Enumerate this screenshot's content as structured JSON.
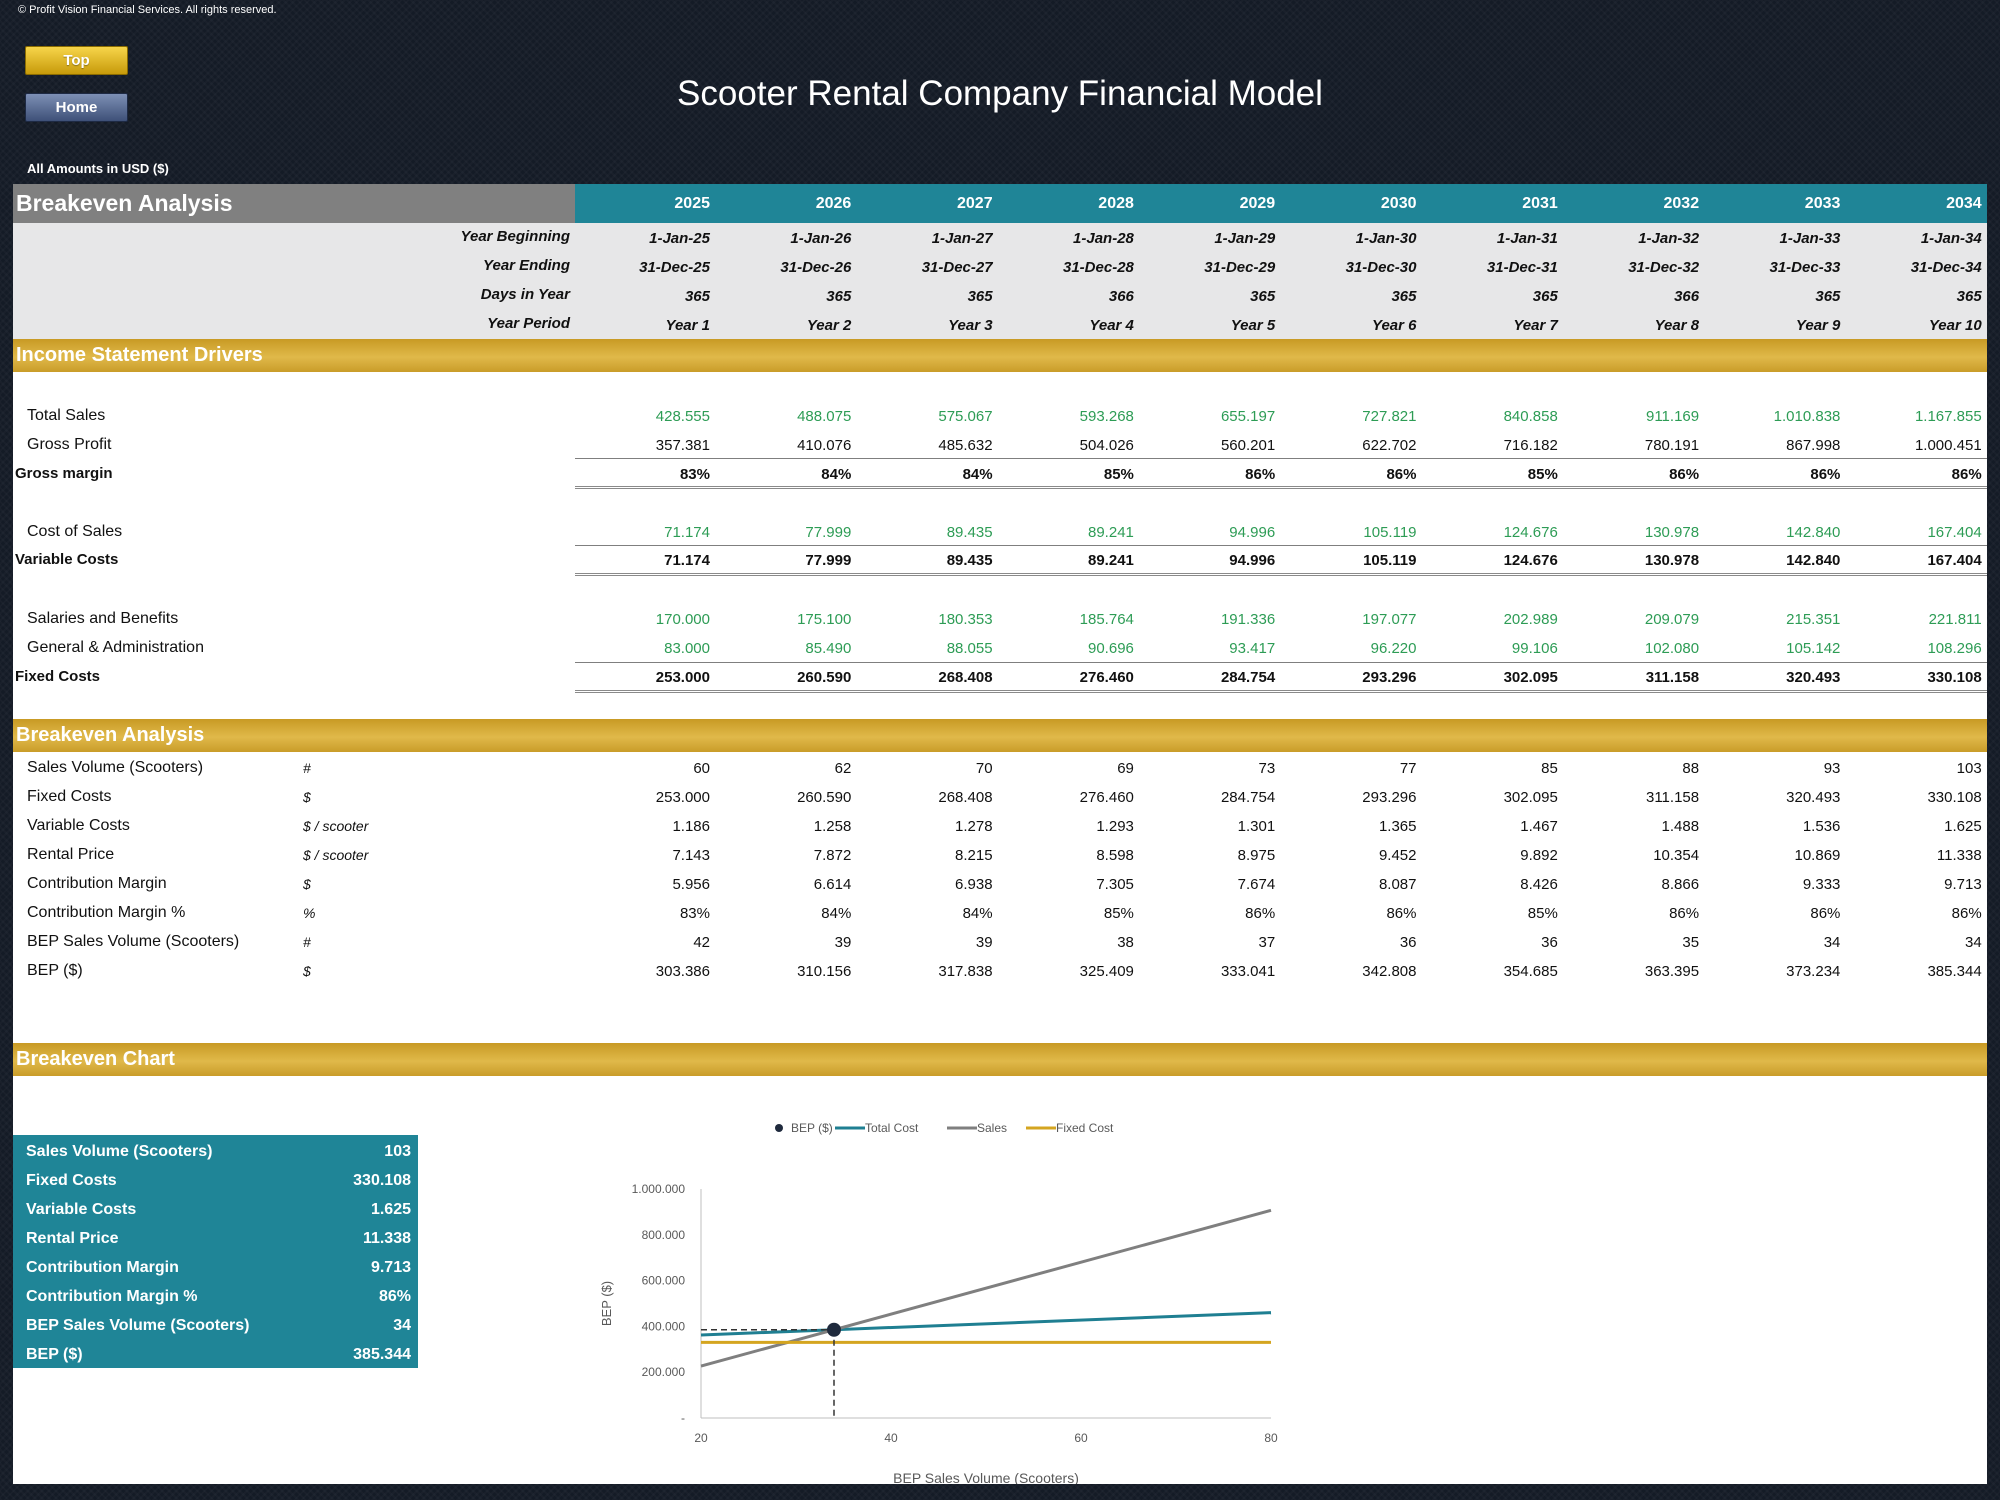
{
  "copyright": "© Profit Vision Financial Services. All rights reserved.",
  "buttons": {
    "top": "Top",
    "home": "Home"
  },
  "title": "Scooter Rental Company Financial Model",
  "amounts_note": "All Amounts in  USD ($)",
  "header": {
    "section": "Breakeven Analysis",
    "years": [
      "2025",
      "2026",
      "2027",
      "2028",
      "2029",
      "2030",
      "2031",
      "2032",
      "2033",
      "2034"
    ]
  },
  "timeline": {
    "labels": [
      "Year Beginning",
      "Year Ending",
      "Days in Year",
      "Year Period"
    ],
    "year_beginning": [
      "1-Jan-25",
      "1-Jan-26",
      "1-Jan-27",
      "1-Jan-28",
      "1-Jan-29",
      "1-Jan-30",
      "1-Jan-31",
      "1-Jan-32",
      "1-Jan-33",
      "1-Jan-34"
    ],
    "year_ending": [
      "31-Dec-25",
      "31-Dec-26",
      "31-Dec-27",
      "31-Dec-28",
      "31-Dec-29",
      "31-Dec-30",
      "31-Dec-31",
      "31-Dec-32",
      "31-Dec-33",
      "31-Dec-34"
    ],
    "days_in_year": [
      "365",
      "365",
      "365",
      "366",
      "365",
      "365",
      "365",
      "366",
      "365",
      "365"
    ],
    "year_period": [
      "Year 1",
      "Year 2",
      "Year 3",
      "Year 4",
      "Year 5",
      "Year 6",
      "Year 7",
      "Year 8",
      "Year 9",
      "Year 10"
    ]
  },
  "income_drivers": {
    "title": "Income Statement Drivers",
    "rows": [
      {
        "label": "Total Sales",
        "values": [
          "428.555",
          "488.075",
          "575.067",
          "593.268",
          "655.197",
          "727.821",
          "840.858",
          "911.169",
          "1.010.838",
          "1.167.855"
        ]
      },
      {
        "label": "Gross Profit",
        "values": [
          "357.381",
          "410.076",
          "485.632",
          "504.026",
          "560.201",
          "622.702",
          "716.182",
          "780.191",
          "867.998",
          "1.000.451"
        ]
      },
      {
        "label": "Gross margin",
        "values": [
          "83%",
          "84%",
          "84%",
          "85%",
          "86%",
          "86%",
          "85%",
          "86%",
          "86%",
          "86%"
        ]
      },
      {
        "label": "Cost of Sales",
        "values": [
          "71.174",
          "77.999",
          "89.435",
          "89.241",
          "94.996",
          "105.119",
          "124.676",
          "130.978",
          "142.840",
          "167.404"
        ]
      },
      {
        "label": "Variable Costs",
        "values": [
          "71.174",
          "77.999",
          "89.435",
          "89.241",
          "94.996",
          "105.119",
          "124.676",
          "130.978",
          "142.840",
          "167.404"
        ]
      },
      {
        "label": "Salaries and Benefits",
        "values": [
          "170.000",
          "175.100",
          "180.353",
          "185.764",
          "191.336",
          "197.077",
          "202.989",
          "209.079",
          "215.351",
          "221.811"
        ]
      },
      {
        "label": "General & Administration",
        "values": [
          "83.000",
          "85.490",
          "88.055",
          "90.696",
          "93.417",
          "96.220",
          "99.106",
          "102.080",
          "105.142",
          "108.296"
        ]
      },
      {
        "label": "Fixed Costs",
        "values": [
          "253.000",
          "260.590",
          "268.408",
          "276.460",
          "284.754",
          "293.296",
          "302.095",
          "311.158",
          "320.493",
          "330.108"
        ]
      }
    ]
  },
  "breakeven": {
    "title": "Breakeven Analysis",
    "rows": [
      {
        "label": "Sales Volume (Scooters)",
        "unit": "#",
        "values": [
          "60",
          "62",
          "70",
          "69",
          "73",
          "77",
          "85",
          "88",
          "93",
          "103"
        ]
      },
      {
        "label": "Fixed Costs",
        "unit": "$",
        "values": [
          "253.000",
          "260.590",
          "268.408",
          "276.460",
          "284.754",
          "293.296",
          "302.095",
          "311.158",
          "320.493",
          "330.108"
        ]
      },
      {
        "label": "Variable Costs",
        "unit": "$ / scooter",
        "values": [
          "1.186",
          "1.258",
          "1.278",
          "1.293",
          "1.301",
          "1.365",
          "1.467",
          "1.488",
          "1.536",
          "1.625"
        ]
      },
      {
        "label": "Rental Price",
        "unit": "$ / scooter",
        "values": [
          "7.143",
          "7.872",
          "8.215",
          "8.598",
          "8.975",
          "9.452",
          "9.892",
          "10.354",
          "10.869",
          "11.338"
        ]
      },
      {
        "label": "Contribution Margin",
        "unit": "$",
        "values": [
          "5.956",
          "6.614",
          "6.938",
          "7.305",
          "7.674",
          "8.087",
          "8.426",
          "8.866",
          "9.333",
          "9.713"
        ]
      },
      {
        "label": "Contribution Margin %",
        "unit": "%",
        "values": [
          "83%",
          "84%",
          "84%",
          "85%",
          "86%",
          "86%",
          "85%",
          "86%",
          "86%",
          "86%"
        ]
      },
      {
        "label": "BEP Sales Volume (Scooters)",
        "unit": "#",
        "values": [
          "42",
          "39",
          "39",
          "38",
          "37",
          "36",
          "36",
          "35",
          "34",
          "34"
        ]
      },
      {
        "label": "BEP ($)",
        "unit": "$",
        "values": [
          "303.386",
          "310.156",
          "317.838",
          "325.409",
          "333.041",
          "342.808",
          "354.685",
          "363.395",
          "373.234",
          "385.344"
        ]
      }
    ]
  },
  "chart_section_title": "Breakeven Chart",
  "summary": [
    {
      "label": "Sales Volume (Scooters)",
      "value": "103"
    },
    {
      "label": "Fixed Costs",
      "value": "330.108"
    },
    {
      "label": "Variable Costs",
      "value": "1.625"
    },
    {
      "label": "Rental Price",
      "value": "11.338"
    },
    {
      "label": "Contribution Margin",
      "value": "9.713"
    },
    {
      "label": "Contribution Margin %",
      "value": "86%"
    },
    {
      "label": "BEP Sales Volume (Scooters)",
      "value": "34"
    },
    {
      "label": "BEP ($)",
      "value": "385.344"
    }
  ],
  "chart_data": {
    "type": "line",
    "xlabel": "BEP Sales Volume (Scooters)",
    "ylabel": "BEP ($)",
    "xlim": [
      20,
      80
    ],
    "ylim": [
      0,
      1000000
    ],
    "x_ticks": [
      "20",
      "40",
      "60",
      "80"
    ],
    "y_ticks": [
      "-",
      "200.000",
      "400.000",
      "600.000",
      "800.000",
      "1.000.000"
    ],
    "legend_position": "top-center",
    "series": [
      {
        "name": "BEP ($)",
        "kind": "point",
        "color": "#1f2a3d",
        "points": [
          [
            34,
            385344
          ]
        ]
      },
      {
        "name": "Total Cost",
        "color": "#1f7f92",
        "points": [
          [
            20,
            362608
          ],
          [
            80,
            460108
          ]
        ]
      },
      {
        "name": "Sales",
        "color": "#7f7f7f",
        "points": [
          [
            20,
            226760
          ],
          [
            80,
            907040
          ]
        ]
      },
      {
        "name": "Fixed Cost",
        "color": "#d4a520",
        "points": [
          [
            20,
            330108
          ],
          [
            80,
            330108
          ]
        ]
      }
    ]
  },
  "colors": {
    "teal": "#1f8597",
    "gold": "#c89a24",
    "grey_header": "#808080",
    "green_input": "#2d9c55",
    "background": "#141b26"
  }
}
